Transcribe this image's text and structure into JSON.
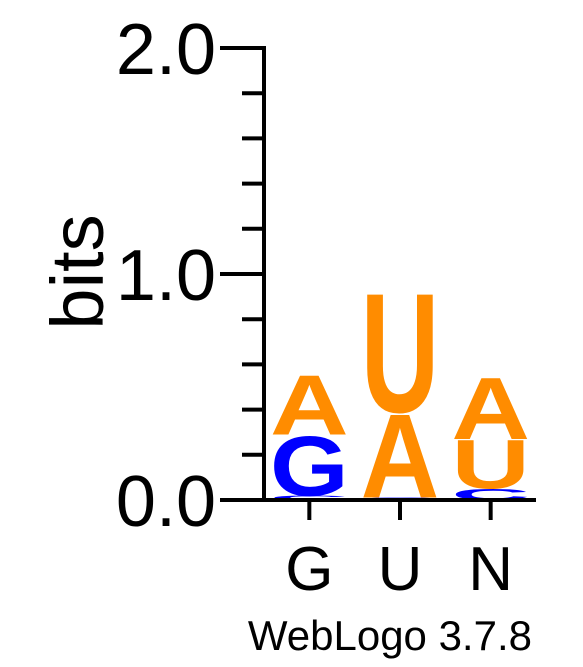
{
  "chart_data": {
    "type": "sequence-logo",
    "ylabel": "bits",
    "ylim": [
      0,
      2.0
    ],
    "y_ticks": [
      "0.0",
      "1.0",
      "2.0"
    ],
    "y_tick_values": [
      0,
      1,
      2
    ],
    "categories": [
      "G",
      "U",
      "N"
    ],
    "colors": {
      "A": "#ff8c00",
      "U": "#ff8c00",
      "G": "#0000ff",
      "C": "#0000ff"
    },
    "stacks": [
      {
        "position": "G",
        "letters": [
          {
            "letter": "C",
            "bits": 0.02
          },
          {
            "letter": "G",
            "bits": 0.27
          },
          {
            "letter": "A",
            "bits": 0.27
          }
        ]
      },
      {
        "position": "U",
        "letters": [
          {
            "letter": "G",
            "bits": 0.01
          },
          {
            "letter": "A",
            "bits": 0.38
          },
          {
            "letter": "U",
            "bits": 0.54
          }
        ]
      },
      {
        "position": "N",
        "letters": [
          {
            "letter": "C",
            "bits": 0.05
          },
          {
            "letter": "U",
            "bits": 0.22
          },
          {
            "letter": "A",
            "bits": 0.28
          }
        ]
      }
    ],
    "footer": "WebLogo 3.7.8"
  }
}
